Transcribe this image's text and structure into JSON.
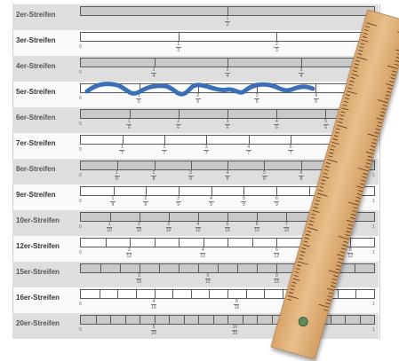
{
  "strips": [
    {
      "label": "2er-Streifen",
      "n": 2,
      "shaded": true,
      "fracs": [
        {
          "pos": 1,
          "num": "1",
          "den": "2"
        }
      ],
      "show_ends": false
    },
    {
      "label": "3er-Streifen",
      "n": 3,
      "shaded": false,
      "fracs": [
        {
          "pos": 1,
          "num": "1",
          "den": "3"
        },
        {
          "pos": 2,
          "num": "2",
          "den": "3"
        }
      ],
      "show_ends": true
    },
    {
      "label": "4er-Streifen",
      "n": 4,
      "shaded": true,
      "fracs": [
        {
          "pos": 1,
          "num": "1",
          "den": "4"
        },
        {
          "pos": 2,
          "num": "2",
          "den": "4"
        },
        {
          "pos": 3,
          "num": "3",
          "den": "4"
        }
      ],
      "show_ends": true
    },
    {
      "label": "5er-Streifen",
      "n": 5,
      "shaded": false,
      "fracs": [
        {
          "pos": 1,
          "num": "1",
          "den": "5"
        },
        {
          "pos": 2,
          "num": "2",
          "den": "5"
        },
        {
          "pos": 3,
          "num": "3",
          "den": "5"
        },
        {
          "pos": 4,
          "num": "4",
          "den": "5"
        }
      ],
      "show_ends": true
    },
    {
      "label": "6er-Streifen",
      "n": 6,
      "shaded": true,
      "fracs": [
        {
          "pos": 1,
          "num": "1",
          "den": "6"
        },
        {
          "pos": 2,
          "num": "2",
          "den": "6"
        },
        {
          "pos": 3,
          "num": "3",
          "den": "6"
        },
        {
          "pos": 4,
          "num": "4",
          "den": "6"
        },
        {
          "pos": 5,
          "num": "5",
          "den": "6"
        }
      ],
      "show_ends": true
    },
    {
      "label": "7er-Streifen",
      "n": 7,
      "shaded": false,
      "fracs": [
        {
          "pos": 1,
          "num": "1",
          "den": "7"
        },
        {
          "pos": 2,
          "num": "2",
          "den": "7"
        },
        {
          "pos": 3,
          "num": "3",
          "den": "7"
        },
        {
          "pos": 4,
          "num": "4",
          "den": "7"
        },
        {
          "pos": 5,
          "num": "5",
          "den": "7"
        }
      ],
      "show_ends": true
    },
    {
      "label": "8er-Streifen",
      "n": 8,
      "shaded": true,
      "fracs": [
        {
          "pos": 1,
          "num": "1",
          "den": "8"
        },
        {
          "pos": 2,
          "num": "2",
          "den": "8"
        },
        {
          "pos": 3,
          "num": "3",
          "den": "8"
        },
        {
          "pos": 4,
          "num": "4",
          "den": "8"
        },
        {
          "pos": 5,
          "num": "5",
          "den": "8"
        },
        {
          "pos": 6,
          "num": "6",
          "den": "8"
        }
      ],
      "show_ends": true
    },
    {
      "label": "9er-Streifen",
      "n": 9,
      "shaded": false,
      "fracs": [
        {
          "pos": 1,
          "num": "1",
          "den": "9"
        },
        {
          "pos": 2,
          "num": "2",
          "den": "9"
        },
        {
          "pos": 3,
          "num": "3",
          "den": "9"
        },
        {
          "pos": 4,
          "num": "4",
          "den": "9"
        },
        {
          "pos": 5,
          "num": "5",
          "den": "9"
        },
        {
          "pos": 6,
          "num": "6",
          "den": "9"
        }
      ],
      "show_ends": true
    },
    {
      "label": "10er-Streifen",
      "n": 10,
      "shaded": true,
      "fracs": [
        {
          "pos": 1,
          "num": "1",
          "den": "10"
        },
        {
          "pos": 2,
          "num": "2",
          "den": "10"
        },
        {
          "pos": 3,
          "num": "3",
          "den": "10"
        },
        {
          "pos": 4,
          "num": "4",
          "den": "10"
        },
        {
          "pos": 5,
          "num": "5",
          "den": "10"
        },
        {
          "pos": 6,
          "num": "6",
          "den": "10"
        },
        {
          "pos": 7,
          "num": "7",
          "den": "10"
        }
      ],
      "show_ends": true
    },
    {
      "label": "12er-Streifen",
      "n": 12,
      "shaded": false,
      "fracs": [
        {
          "pos": 2,
          "num": "2",
          "den": "12"
        },
        {
          "pos": 5,
          "num": "4",
          "den": "12"
        },
        {
          "pos": 8,
          "num": "6",
          "den": "12"
        },
        {
          "pos": 11,
          "num": "8",
          "den": "12"
        }
      ],
      "show_ends": true
    },
    {
      "label": "15er-Streifen",
      "n": 15,
      "shaded": true,
      "fracs": [
        {
          "pos": 3,
          "num": "3",
          "den": "15"
        },
        {
          "pos": 6.5,
          "num": "6",
          "den": "15"
        },
        {
          "pos": 10,
          "num": "9",
          "den": "15"
        }
      ],
      "show_ends": false
    },
    {
      "label": "16er-Streifen",
      "n": 16,
      "shaded": false,
      "fracs": [
        {
          "pos": 4,
          "num": "4",
          "den": "16"
        },
        {
          "pos": 8.5,
          "num": "8",
          "den": "16"
        }
      ],
      "show_ends": true
    },
    {
      "label": "20er-Streifen",
      "n": 20,
      "shaded": true,
      "fracs": [
        {
          "pos": 5,
          "num": "5",
          "den": "20"
        },
        {
          "pos": 10.5,
          "num": "10",
          "den": "20"
        }
      ],
      "show_ends": true
    }
  ],
  "end_labels": {
    "zero": "0",
    "one": "1"
  },
  "annotation": {
    "stroke_color": "#3b6fb6",
    "description": "hand-drawn-squiggle"
  },
  "ruler": {
    "color": "#e0b27a",
    "tick_color": "#3a2a18",
    "icon": "ruler-icon"
  }
}
